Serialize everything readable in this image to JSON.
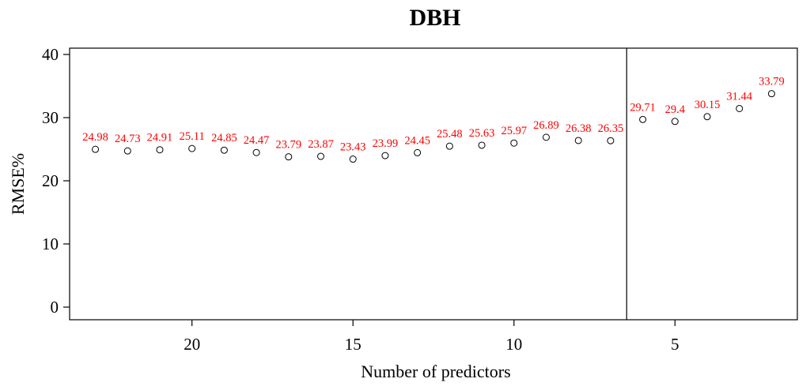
{
  "chart_data": {
    "type": "scatter",
    "title": "DBH",
    "xlabel": "Number of predictors",
    "ylabel": "RMSE%",
    "xlim": [
      23.8,
      1.2
    ],
    "ylim": [
      -2,
      41
    ],
    "x_ticks": [
      20,
      15,
      10,
      5
    ],
    "y_ticks": [
      0,
      10,
      20,
      30,
      40
    ],
    "vertical_line_x": 6.5,
    "grid": false,
    "legend": "none",
    "point_color": "#000000",
    "label_color": "#ff0000",
    "series": [
      {
        "x": [
          23,
          22,
          21,
          20,
          19,
          18,
          17,
          16,
          15,
          14,
          13,
          12,
          11,
          10,
          9,
          8,
          7,
          6,
          5,
          4,
          3,
          2
        ],
        "values": [
          24.98,
          24.73,
          24.91,
          25.11,
          24.85,
          24.47,
          23.79,
          23.87,
          23.43,
          23.99,
          24.45,
          25.48,
          25.63,
          25.97,
          26.89,
          26.38,
          26.35,
          29.71,
          29.4,
          30.15,
          31.44,
          33.79
        ],
        "labels": [
          "24.98",
          "24.73",
          "24.91",
          "25.11",
          "24.85",
          "24.47",
          "23.79",
          "23.87",
          "23.43",
          "23.99",
          "24.45",
          "25.48",
          "25.63",
          "25.97",
          "26.89",
          "26.38",
          "26.35",
          "29.71",
          "29.4",
          "30.15",
          "31.44",
          "33.79"
        ]
      }
    ]
  }
}
